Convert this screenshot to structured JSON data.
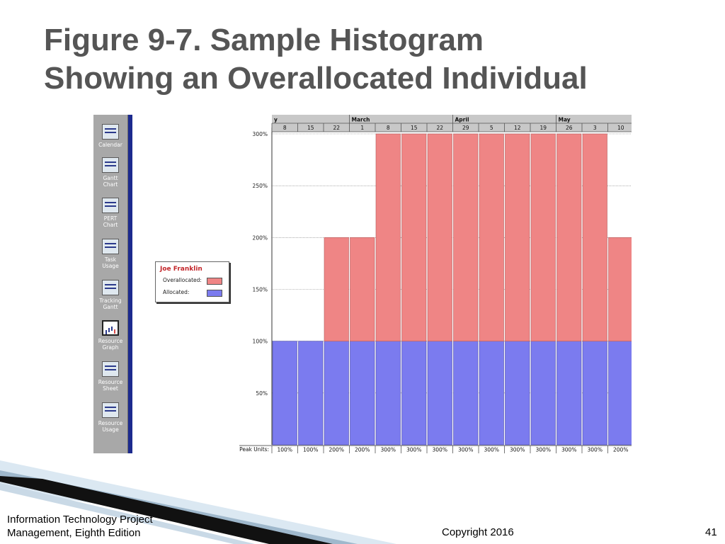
{
  "slide": {
    "title_line1": "Figure 9-7. Sample Histogram",
    "title_line2": "Showing an Overallocated Individual",
    "footer_line1": "Information Technology Project",
    "footer_line2": "Management, Eighth Edition",
    "copyright": "Copyright 2016",
    "page_number": "41"
  },
  "views_bar": {
    "items": [
      {
        "label": "Calendar",
        "icon": "calendar-icon"
      },
      {
        "label": "Gantt\nChart",
        "icon": "gantt-chart-icon"
      },
      {
        "label": "PERT\nChart",
        "icon": "pert-chart-icon"
      },
      {
        "label": "Task\nUsage",
        "icon": "task-usage-icon"
      },
      {
        "label": "Tracking\nGantt",
        "icon": "tracking-gantt-icon"
      },
      {
        "label": "Resource\nGraph",
        "icon": "resource-graph-icon",
        "active": true
      },
      {
        "label": "Resource\nSheet",
        "icon": "resource-sheet-icon"
      },
      {
        "label": "Resource\nUsage",
        "icon": "resource-usage-icon"
      }
    ]
  },
  "legend": {
    "resource_name": "Joe Franklin",
    "overallocated_label": "Overallocated:",
    "allocated_label": "Allocated:"
  },
  "chart_data": {
    "type": "bar",
    "stacked": true,
    "month_labels": [
      {
        "label": "y",
        "week_index": 0
      },
      {
        "label": "March",
        "week_index": 3
      },
      {
        "label": "April",
        "week_index": 7
      },
      {
        "label": "May",
        "week_index": 11
      }
    ],
    "categories": [
      "8",
      "15",
      "22",
      "1",
      "8",
      "15",
      "22",
      "29",
      "5",
      "12",
      "19",
      "26",
      "3",
      "10"
    ],
    "series": [
      {
        "name": "Allocated",
        "color": "#7b7bef",
        "values": [
          100,
          100,
          100,
          100,
          100,
          100,
          100,
          100,
          100,
          100,
          100,
          100,
          100,
          100
        ]
      },
      {
        "name": "Overallocated",
        "color": "#ef8585",
        "values": [
          0,
          0,
          100,
          100,
          200,
          200,
          200,
          200,
          200,
          200,
          200,
          200,
          200,
          100
        ]
      }
    ],
    "peak_units_label": "Peak Units:",
    "peak_units": [
      "100%",
      "100%",
      "200%",
      "200%",
      "300%",
      "300%",
      "300%",
      "300%",
      "300%",
      "300%",
      "300%",
      "300%",
      "300%",
      "200%"
    ],
    "y_ticks": [
      "50%",
      "100%",
      "150%",
      "200%",
      "250%",
      "300%"
    ],
    "ylim": [
      0,
      300
    ],
    "grid": true
  }
}
